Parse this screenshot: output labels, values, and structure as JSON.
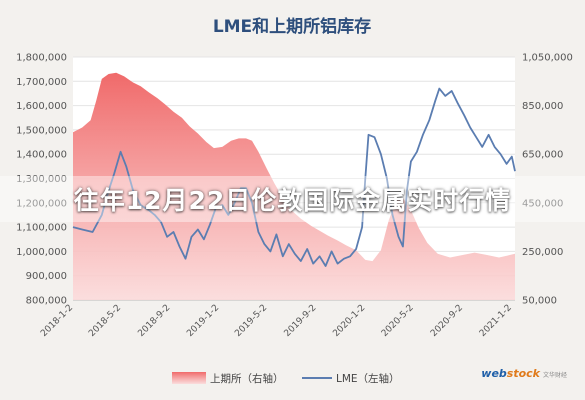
{
  "banner_text": "往年12月22日伦敦国际金属实时行情",
  "watermark": {
    "brand_a": "web",
    "brand_b": "stock",
    "sub": "文华财经"
  },
  "chart_data": {
    "type": "line",
    "title": "LME和上期所铝库存",
    "left_axis": {
      "ylim": [
        800000,
        1800000
      ],
      "ticks": [
        "800,000",
        "900,000",
        "1,000,000",
        "1,100,000",
        "1,200,000",
        "1,300,000",
        "1,400,000",
        "1,500,000",
        "1,600,000",
        "1,700,000",
        "1,800,000"
      ]
    },
    "right_axis": {
      "ylim": [
        50000,
        1050000
      ],
      "ticks": [
        "50,000",
        "250,000",
        "450,000",
        "650,000",
        "850,000",
        "1,050,000"
      ]
    },
    "x_ticks": [
      "2018-1-2",
      "2018-5-2",
      "2018-9-2",
      "2019-1-2",
      "2019-5-2",
      "2019-9-2",
      "2020-1-2",
      "2020-5-2",
      "2020-9-2",
      "2021-1-2"
    ],
    "x_start": "2018-01-02",
    "x_end": "2021-01-10",
    "colors": {
      "area": "#f07070",
      "line": "#5b7db1"
    },
    "series": [
      {
        "name": "上期所（右轴）",
        "axis": "right",
        "kind": "area",
        "points": [
          [
            "2018-01-02",
            740000
          ],
          [
            "2018-01-25",
            760000
          ],
          [
            "2018-02-15",
            790000
          ],
          [
            "2018-03-01",
            870000
          ],
          [
            "2018-03-15",
            960000
          ],
          [
            "2018-04-01",
            980000
          ],
          [
            "2018-04-20",
            985000
          ],
          [
            "2018-05-10",
            970000
          ],
          [
            "2018-06-01",
            945000
          ],
          [
            "2018-06-20",
            930000
          ],
          [
            "2018-07-10",
            905000
          ],
          [
            "2018-08-01",
            880000
          ],
          [
            "2018-08-20",
            855000
          ],
          [
            "2018-09-10",
            825000
          ],
          [
            "2018-10-01",
            800000
          ],
          [
            "2018-10-20",
            765000
          ],
          [
            "2018-11-10",
            735000
          ],
          [
            "2018-12-01",
            700000
          ],
          [
            "2018-12-20",
            675000
          ],
          [
            "2019-01-10",
            680000
          ],
          [
            "2019-02-01",
            705000
          ],
          [
            "2019-02-20",
            715000
          ],
          [
            "2019-03-10",
            715000
          ],
          [
            "2019-03-25",
            705000
          ],
          [
            "2019-04-10",
            660000
          ],
          [
            "2019-05-01",
            590000
          ],
          [
            "2019-05-20",
            530000
          ],
          [
            "2019-06-10",
            470000
          ],
          [
            "2019-07-01",
            420000
          ],
          [
            "2019-07-25",
            385000
          ],
          [
            "2019-08-20",
            355000
          ],
          [
            "2019-09-10",
            335000
          ],
          [
            "2019-10-01",
            315000
          ],
          [
            "2019-10-25",
            295000
          ],
          [
            "2019-11-15",
            275000
          ],
          [
            "2019-12-10",
            255000
          ],
          [
            "2020-01-02",
            215000
          ],
          [
            "2020-01-20",
            210000
          ],
          [
            "2020-02-10",
            255000
          ],
          [
            "2020-03-01",
            380000
          ],
          [
            "2020-03-20",
            460000
          ],
          [
            "2020-04-05",
            470000
          ],
          [
            "2020-04-25",
            420000
          ],
          [
            "2020-05-15",
            345000
          ],
          [
            "2020-06-05",
            285000
          ],
          [
            "2020-07-01",
            240000
          ],
          [
            "2020-08-01",
            225000
          ],
          [
            "2020-09-01",
            235000
          ],
          [
            "2020-10-01",
            245000
          ],
          [
            "2020-11-01",
            235000
          ],
          [
            "2020-12-01",
            225000
          ],
          [
            "2021-01-10",
            240000
          ]
        ]
      },
      {
        "name": "LME（左轴）",
        "axis": "left",
        "kind": "line",
        "points": [
          [
            "2018-01-02",
            1100000
          ],
          [
            "2018-01-25",
            1090000
          ],
          [
            "2018-02-20",
            1080000
          ],
          [
            "2018-03-15",
            1150000
          ],
          [
            "2018-04-01",
            1250000
          ],
          [
            "2018-04-15",
            1320000
          ],
          [
            "2018-05-01",
            1410000
          ],
          [
            "2018-05-15",
            1350000
          ],
          [
            "2018-06-01",
            1250000
          ],
          [
            "2018-06-20",
            1190000
          ],
          [
            "2018-07-10",
            1170000
          ],
          [
            "2018-07-25",
            1150000
          ],
          [
            "2018-08-10",
            1120000
          ],
          [
            "2018-08-25",
            1060000
          ],
          [
            "2018-09-10",
            1080000
          ],
          [
            "2018-09-25",
            1020000
          ],
          [
            "2018-10-10",
            970000
          ],
          [
            "2018-10-25",
            1060000
          ],
          [
            "2018-11-10",
            1090000
          ],
          [
            "2018-11-25",
            1050000
          ],
          [
            "2018-12-10",
            1110000
          ],
          [
            "2018-12-25",
            1180000
          ],
          [
            "2019-01-10",
            1190000
          ],
          [
            "2019-01-25",
            1150000
          ],
          [
            "2019-02-10",
            1200000
          ],
          [
            "2019-02-25",
            1260000
          ],
          [
            "2019-03-10",
            1260000
          ],
          [
            "2019-03-25",
            1200000
          ],
          [
            "2019-04-10",
            1080000
          ],
          [
            "2019-04-25",
            1030000
          ],
          [
            "2019-05-10",
            1000000
          ],
          [
            "2019-05-25",
            1070000
          ],
          [
            "2019-06-10",
            980000
          ],
          [
            "2019-06-25",
            1030000
          ],
          [
            "2019-07-10",
            990000
          ],
          [
            "2019-07-25",
            960000
          ],
          [
            "2019-08-10",
            1010000
          ],
          [
            "2019-08-25",
            950000
          ],
          [
            "2019-09-10",
            980000
          ],
          [
            "2019-09-25",
            940000
          ],
          [
            "2019-10-10",
            1000000
          ],
          [
            "2019-10-25",
            950000
          ],
          [
            "2019-11-10",
            970000
          ],
          [
            "2019-11-25",
            980000
          ],
          [
            "2019-12-10",
            1010000
          ],
          [
            "2019-12-25",
            1100000
          ],
          [
            "2020-01-02",
            1300000
          ],
          [
            "2020-01-10",
            1480000
          ],
          [
            "2020-01-25",
            1470000
          ],
          [
            "2020-02-10",
            1400000
          ],
          [
            "2020-02-25",
            1300000
          ],
          [
            "2020-03-10",
            1150000
          ],
          [
            "2020-03-25",
            1060000
          ],
          [
            "2020-04-05",
            1020000
          ],
          [
            "2020-04-15",
            1250000
          ],
          [
            "2020-04-25",
            1370000
          ],
          [
            "2020-05-10",
            1410000
          ],
          [
            "2020-05-25",
            1480000
          ],
          [
            "2020-06-10",
            1540000
          ],
          [
            "2020-06-25",
            1620000
          ],
          [
            "2020-07-05",
            1670000
          ],
          [
            "2020-07-20",
            1640000
          ],
          [
            "2020-08-05",
            1660000
          ],
          [
            "2020-08-20",
            1610000
          ],
          [
            "2020-09-05",
            1560000
          ],
          [
            "2020-09-20",
            1510000
          ],
          [
            "2020-10-05",
            1470000
          ],
          [
            "2020-10-20",
            1430000
          ],
          [
            "2020-11-05",
            1480000
          ],
          [
            "2020-11-20",
            1430000
          ],
          [
            "2020-12-05",
            1400000
          ],
          [
            "2020-12-20",
            1360000
          ],
          [
            "2021-01-02",
            1390000
          ],
          [
            "2021-01-10",
            1330000
          ]
        ]
      }
    ]
  }
}
